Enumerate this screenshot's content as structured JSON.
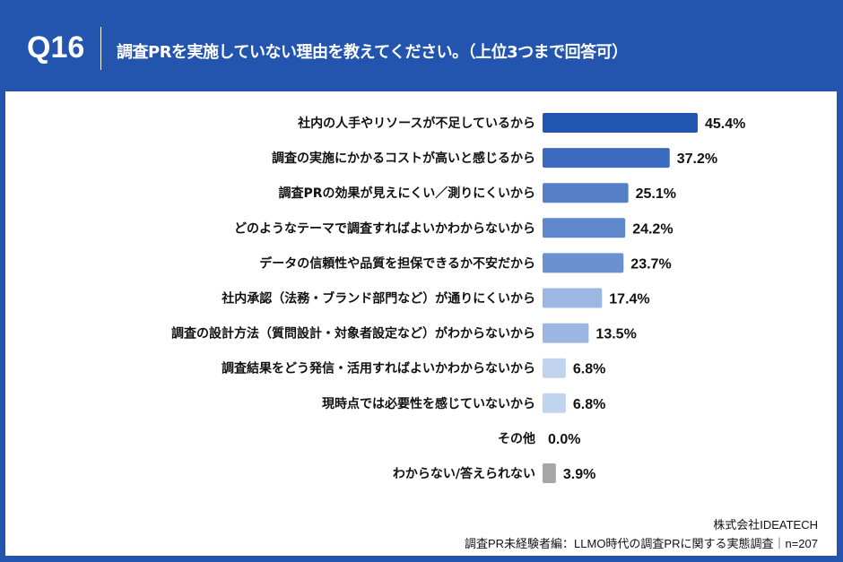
{
  "header": {
    "question_number": "Q16",
    "title": "調査PRを実施していない理由を教えてください。（上位3つまで回答可）"
  },
  "chart_data": {
    "type": "bar",
    "orientation": "horizontal",
    "unit": "%",
    "categories": [
      "社内の人手やリソースが不足しているから",
      "調査の実施にかかるコストが高いと感じるから",
      "調査PRの効果が見えにくい／測りにくいから",
      "どのようなテーマで調査すればよいかわからないから",
      "データの信頼性や品質を担保できるか不安だから",
      "社内承認（法務・ブランド部門など）が通りにくいから",
      "調査の設計方法（質問設計・対象者設定など）がわからないから",
      "調査結果をどう発信・活用すればよいかわからないから",
      "現時点では必要性を感じていないから",
      "その他",
      "わからない/答えられない"
    ],
    "values": [
      45.4,
      37.2,
      25.1,
      24.2,
      23.7,
      17.4,
      13.5,
      6.8,
      6.8,
      0.0,
      3.9
    ],
    "labels": [
      "45.4%",
      "37.2%",
      "25.1%",
      "24.2%",
      "23.7%",
      "17.4%",
      "13.5%",
      "6.8%",
      "6.8%",
      "0.0%",
      "3.9%"
    ],
    "colors": [
      "#2255b0",
      "#3a69bf",
      "#5580c8",
      "#5f88cc",
      "#6b91d0",
      "#9bb7e2",
      "#9ab6e1",
      "#c0d4ee",
      "#c0d4ee",
      "#c0d4ee",
      "#a6a6a6"
    ],
    "grid": false
  },
  "footer": {
    "company": "株式会社IDEATECH",
    "source": "調査PR未経験者編：LLMO時代の調査PRに関する実態調査｜n=207"
  }
}
